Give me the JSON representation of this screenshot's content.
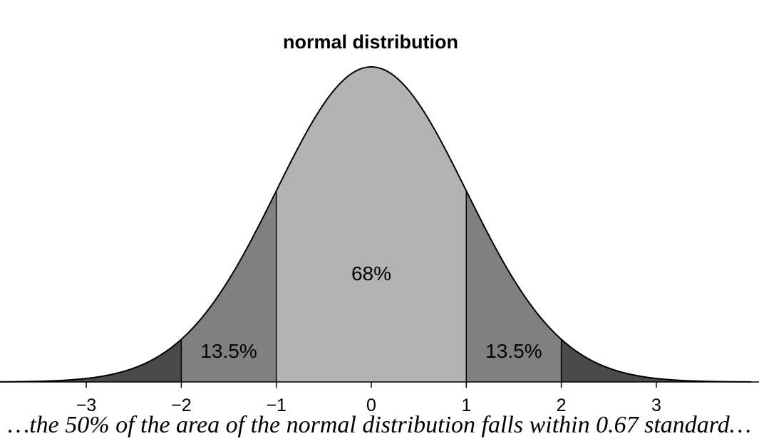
{
  "chart_data": {
    "type": "area",
    "title": "normal distribution",
    "xlabel": "",
    "ylabel": "",
    "xlim": [
      -3.98,
      4.0
    ],
    "ylim": [
      0,
      0.4
    ],
    "x_ticks": [
      -3,
      -2,
      -1,
      0,
      1,
      2,
      3
    ],
    "x_tick_labels": [
      "−3",
      "−2",
      "−1",
      "0",
      "1",
      "2",
      "3"
    ],
    "regions": [
      {
        "from": -3.98,
        "to": -2,
        "color": "#4a4a4a"
      },
      {
        "from": -2,
        "to": -1,
        "color": "#808080",
        "label": "13.5%"
      },
      {
        "from": -1,
        "to": 1,
        "color": "#b3b3b3",
        "label": "68%"
      },
      {
        "from": 1,
        "to": 2,
        "color": "#808080",
        "label": "13.5%"
      },
      {
        "from": 2,
        "to": 4.0,
        "color": "#4a4a4a"
      }
    ],
    "grid": false
  },
  "caption": "…the 50% of the area of the normal distribution falls within 0.67 standard…"
}
